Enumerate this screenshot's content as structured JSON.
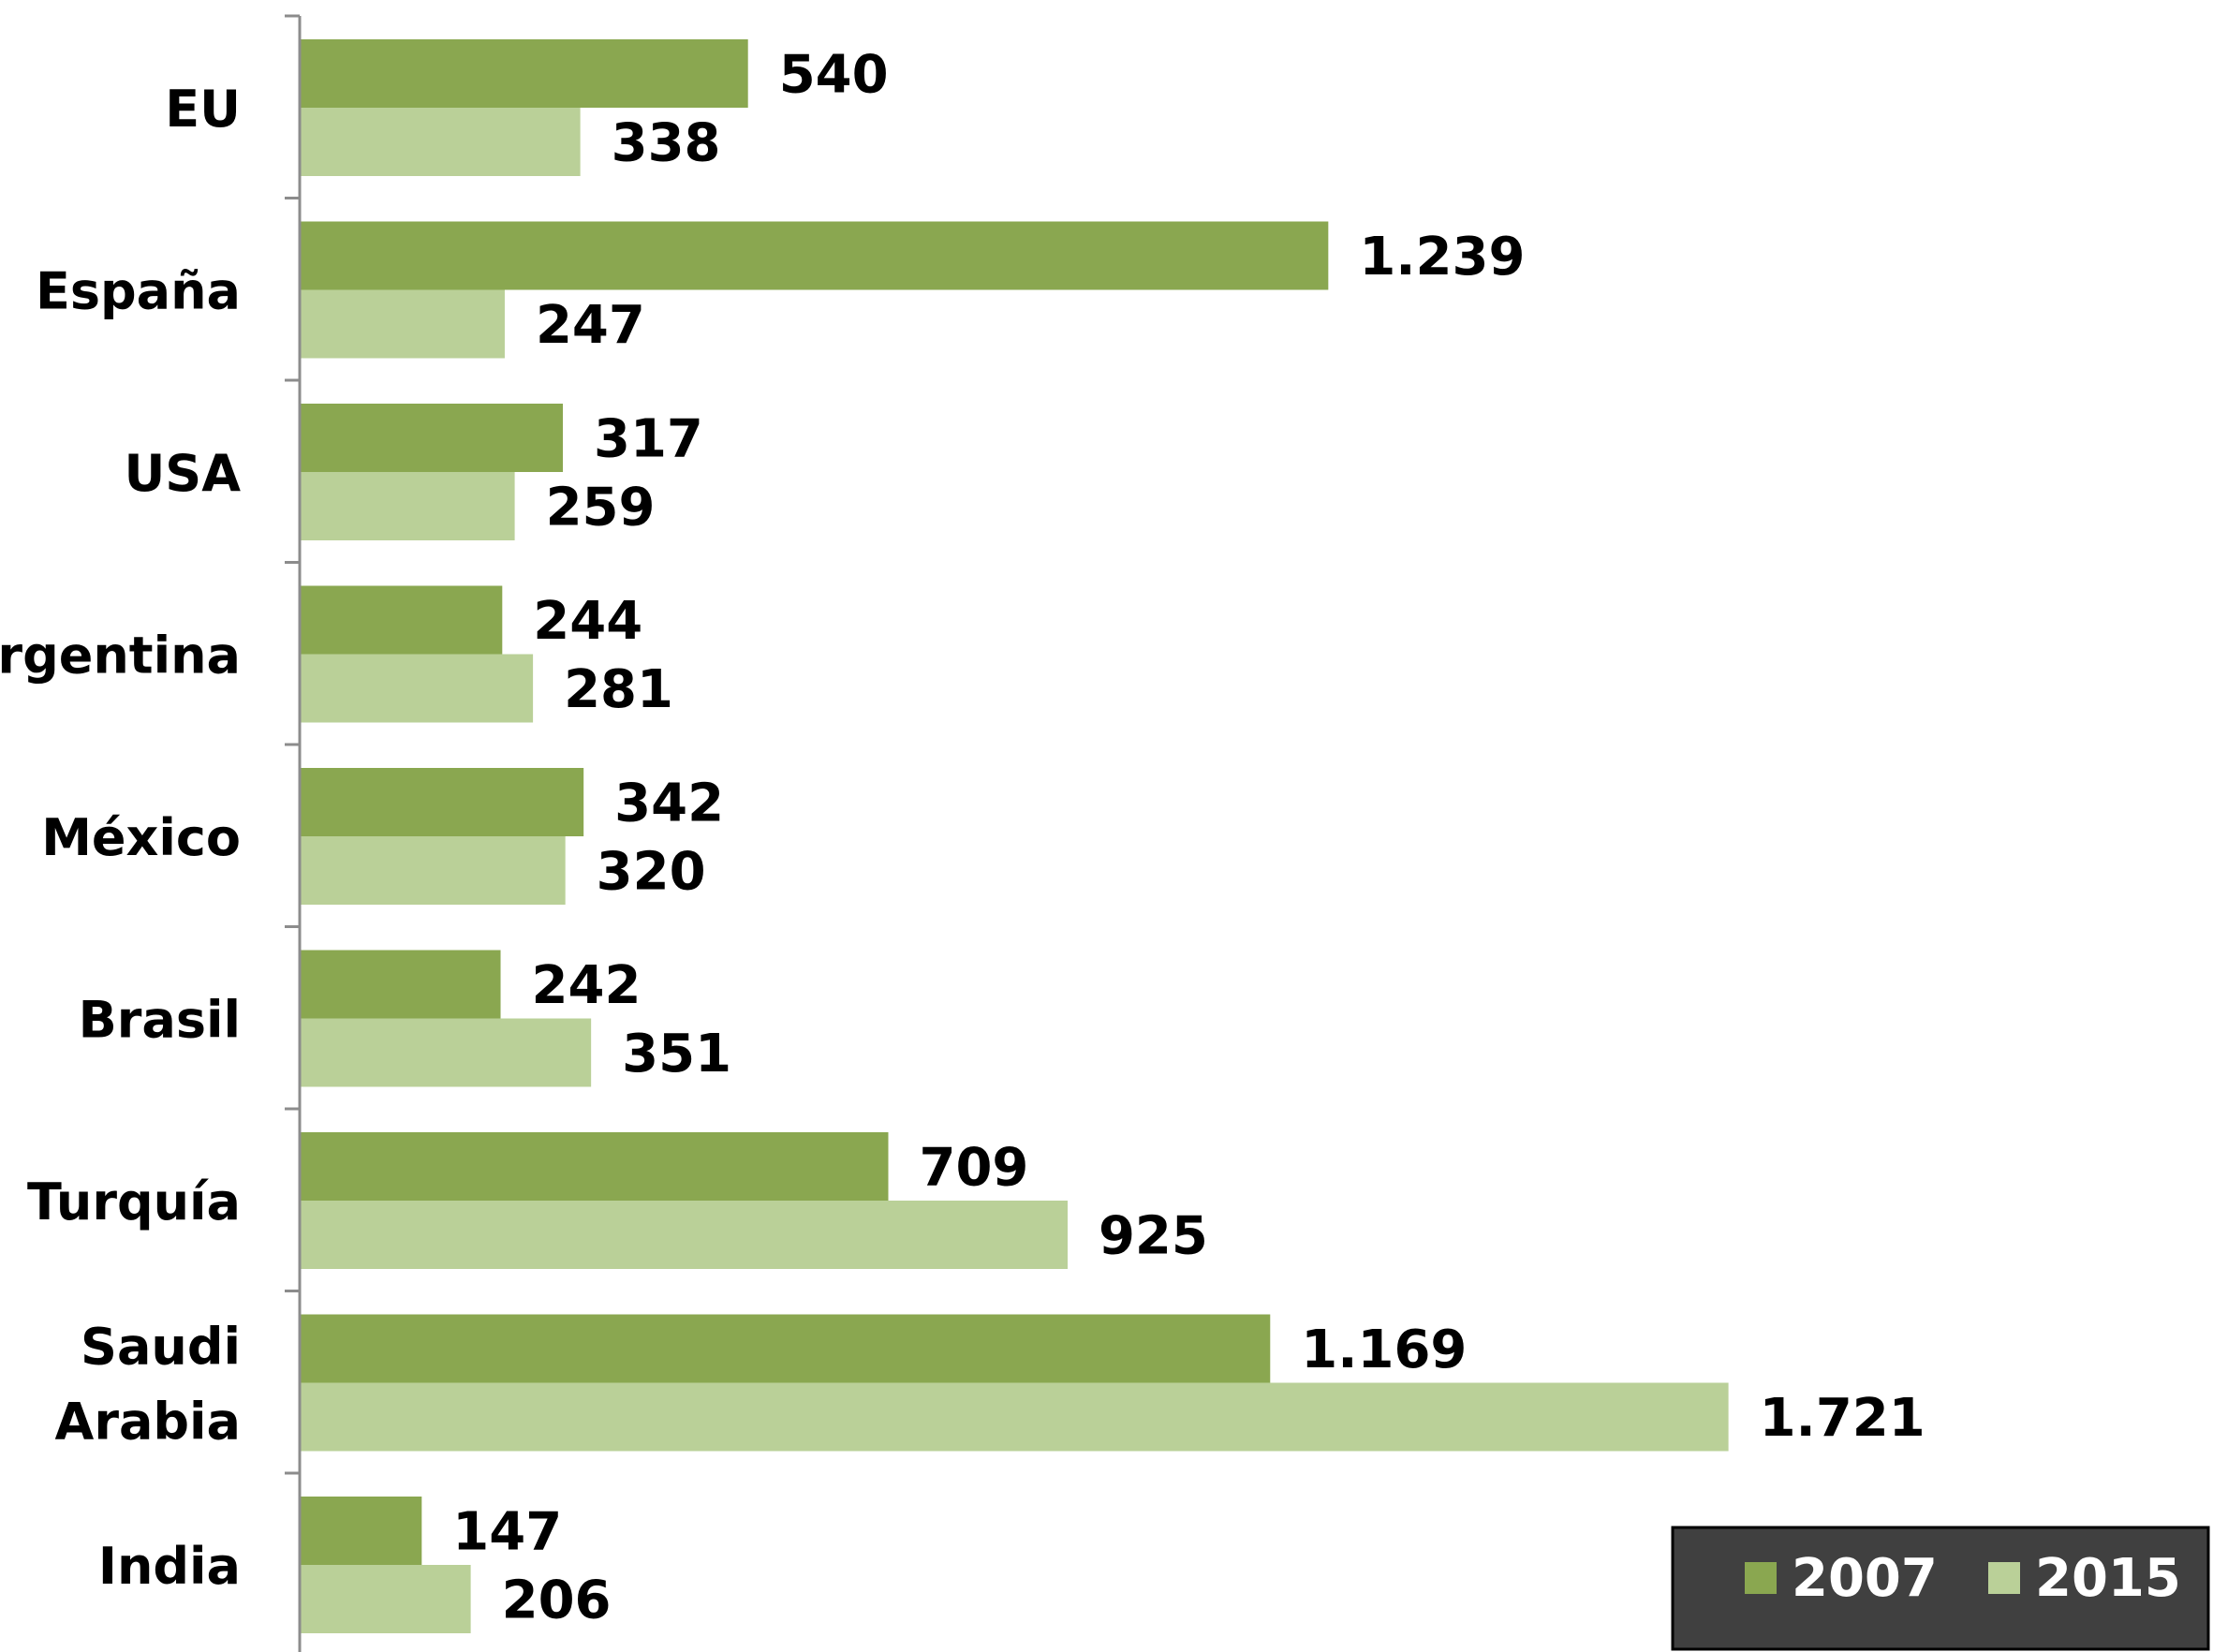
{
  "chart_data": {
    "type": "bar",
    "orientation": "horizontal",
    "categories": [
      [
        "EU"
      ],
      [
        "España"
      ],
      [
        "USA"
      ],
      [
        "Argentina"
      ],
      [
        "México"
      ],
      [
        "Brasil"
      ],
      [
        "Turquía"
      ],
      [
        "Saudi",
        "Arabia"
      ],
      [
        "India"
      ]
    ],
    "series": [
      {
        "name": "2007",
        "color": "#8aa750",
        "values": [
          540,
          1239,
          317,
          244,
          342,
          242,
          709,
          1169,
          147
        ],
        "labels": [
          "540",
          "1.239",
          "317",
          "244",
          "342",
          "242",
          "709",
          "1.169",
          "147"
        ]
      },
      {
        "name": "2015",
        "color": "#bad098",
        "values": [
          338,
          247,
          259,
          281,
          320,
          351,
          925,
          1721,
          206
        ],
        "labels": [
          "338",
          "247",
          "259",
          "281",
          "320",
          "351",
          "925",
          "1.721",
          "206"
        ]
      }
    ],
    "xlim": [
      0,
      2290
    ],
    "axis_color": "#8c8c8c",
    "grid": false,
    "legend": {
      "position": "bottom-right",
      "background": "#404040",
      "border": "#000000"
    }
  }
}
